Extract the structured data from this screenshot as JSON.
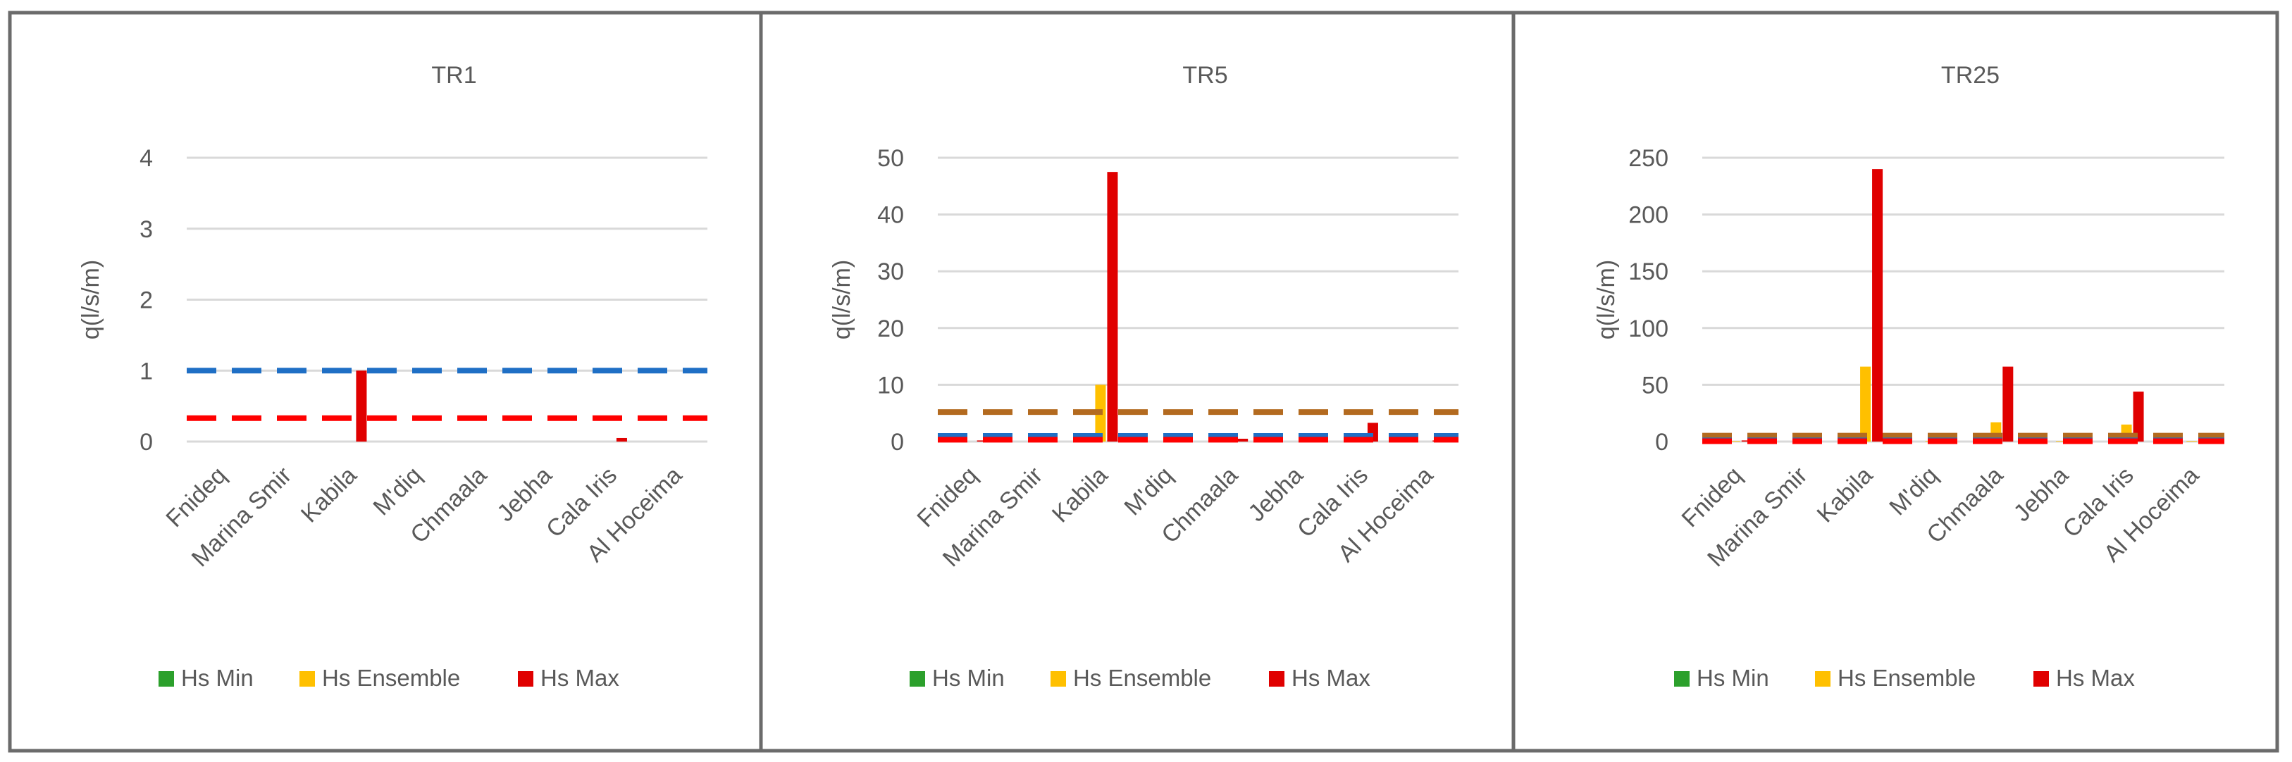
{
  "chart_data": [
    {
      "type": "bar",
      "title": "TR1",
      "ylabel": "q(l/s/m)",
      "xlabel": "",
      "ylim": [
        0,
        4
      ],
      "yticks": [
        0,
        1,
        2,
        3,
        4
      ],
      "grid": true,
      "legend_position": "bottom",
      "categories": [
        "Fnideq",
        "Marina Smir",
        "Kabila",
        "M'diq",
        "Chmaala",
        "Jebha",
        "Cala Iris",
        "Al Hoceima"
      ],
      "series": [
        {
          "name": "Hs Min",
          "color": "#2ca02c",
          "values": [
            0,
            0,
            0,
            0,
            0,
            0,
            0,
            0
          ]
        },
        {
          "name": "Hs Ensemble",
          "color": "#ffc000",
          "values": [
            0,
            0,
            0,
            0,
            0,
            0,
            0,
            0
          ]
        },
        {
          "name": "Hs Max",
          "color": "#e00000",
          "values": [
            0,
            0,
            1.0,
            0,
            0,
            0,
            0.05,
            0
          ]
        }
      ],
      "reference_lines": [
        {
          "value": 1.0,
          "color": "#1f6fc5"
        },
        {
          "value": 0.33,
          "color": "#ff0000"
        }
      ]
    },
    {
      "type": "bar",
      "title": "TR5",
      "ylabel": "q(l/s/m)",
      "xlabel": "",
      "ylim": [
        0,
        50
      ],
      "yticks": [
        0,
        10,
        20,
        30,
        40,
        50
      ],
      "grid": true,
      "legend_position": "bottom",
      "categories": [
        "Fnideq",
        "Marina Smir",
        "Kabila",
        "M'diq",
        "Chmaala",
        "Jebha",
        "Cala Iris",
        "Al Hoceima"
      ],
      "series": [
        {
          "name": "Hs Min",
          "color": "#2ca02c",
          "values": [
            0,
            0,
            0,
            0,
            0,
            0,
            0,
            0
          ]
        },
        {
          "name": "Hs Ensemble",
          "color": "#ffc000",
          "values": [
            0,
            0,
            10,
            0,
            0.2,
            0,
            0.3,
            0
          ]
        },
        {
          "name": "Hs Max",
          "color": "#e00000",
          "values": [
            0.2,
            0.2,
            47.5,
            0.2,
            0.5,
            0.2,
            3.3,
            0.2
          ]
        }
      ],
      "reference_lines": [
        {
          "value": 5.2,
          "color": "#b36a1f"
        },
        {
          "value": 1.0,
          "color": "#1f6fc5"
        },
        {
          "value": 0.33,
          "color": "#ff0000"
        }
      ]
    },
    {
      "type": "bar",
      "title": "TR25",
      "ylabel": "q(l/s/m)",
      "xlabel": "",
      "ylim": [
        0,
        250
      ],
      "yticks": [
        0,
        50,
        100,
        150,
        200,
        250
      ],
      "grid": true,
      "legend_position": "bottom",
      "categories": [
        "Fnideq",
        "Marina Smir",
        "Kabila",
        "M'diq",
        "Chmaala",
        "Jebha",
        "Cala Iris",
        "Al Hoceima"
      ],
      "series": [
        {
          "name": "Hs Min",
          "color": "#2ca02c",
          "values": [
            0,
            0,
            0,
            0,
            0,
            0,
            0,
            0
          ]
        },
        {
          "name": "Hs Ensemble",
          "color": "#ffc000",
          "values": [
            0.5,
            0.5,
            66,
            0.5,
            17,
            0.5,
            15,
            0.5
          ]
        },
        {
          "name": "Hs Max",
          "color": "#e00000",
          "values": [
            1,
            1,
            240,
            1,
            66,
            1,
            44,
            1
          ]
        }
      ],
      "reference_lines": [
        {
          "value": 5.2,
          "color": "#b36a1f"
        },
        {
          "value": 1.0,
          "color": "#1f6fc5"
        },
        {
          "value": 0.33,
          "color": "#ff0000"
        }
      ]
    }
  ]
}
